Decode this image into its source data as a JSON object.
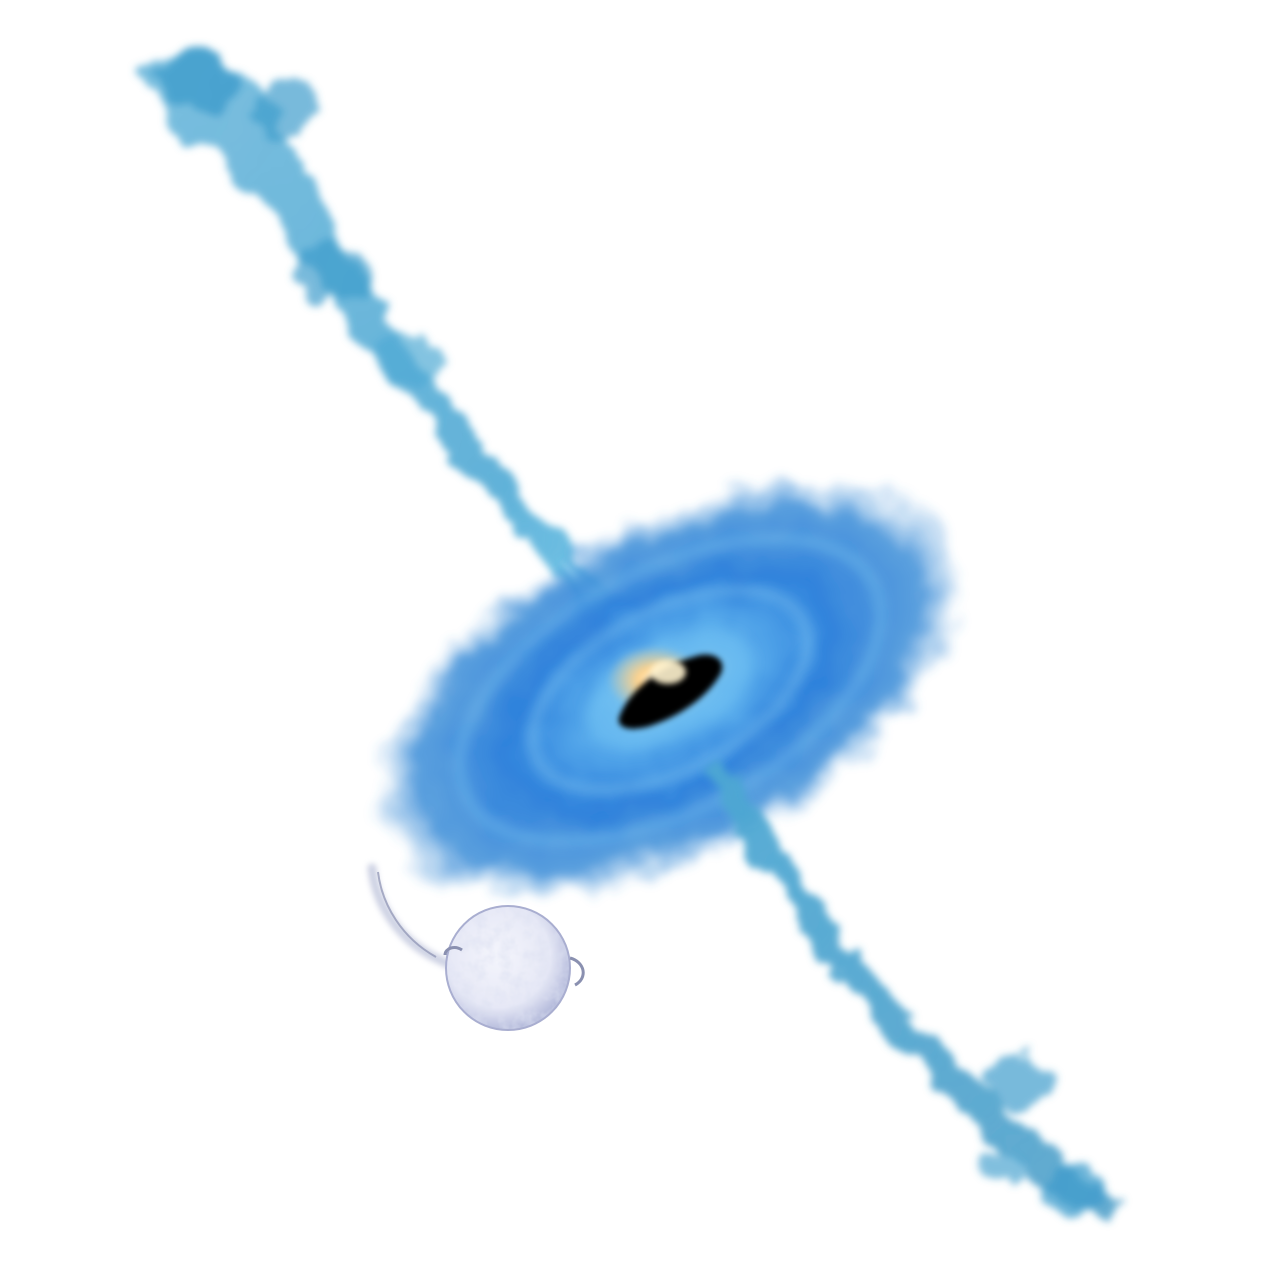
{
  "illustration": {
    "subject": "accretion-disk-with-jets",
    "elements": [
      "jet-upper",
      "jet-lower",
      "accretion-disk",
      "black-hole",
      "core-glow",
      "companion-star",
      "mass-transfer-stream"
    ]
  },
  "colors": {
    "background": "#ffffff",
    "jet_light": "#7fc6e6",
    "jet_mid": "#4fa9d4",
    "jet_dark": "#2f8fc0",
    "disk_outer": "#3f8fd8",
    "disk_mid": "#2f82dc",
    "disk_inner": "#5fb2ee",
    "disk_highlight": "#9ad3f4",
    "black_hole": "#050302",
    "core_glow": "#ffd28a",
    "core_white": "#fffbe8",
    "star_fill": "#e6e8f6",
    "star_shade": "#b6bcdc",
    "stream": "#c7cce0"
  }
}
